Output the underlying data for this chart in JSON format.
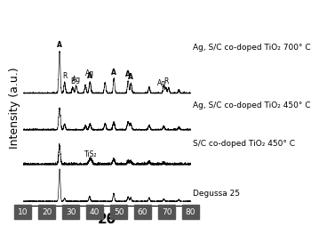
{
  "title": "",
  "xlabel": "2θ",
  "ylabel": "Intensity (a.u.)",
  "xlim": [
    10,
    80
  ],
  "x_ticks": [
    10,
    20,
    30,
    40,
    50,
    60,
    70,
    80
  ],
  "background_color": "#ffffff",
  "line_color": "#000000",
  "labels": [
    "Ag, S/C co-doped TiO₂ 700° C",
    "Ag, S/C co-doped TiO₂ 450° C",
    "S/C co-doped TiO₂ 450° C",
    "Degussa 25"
  ],
  "offsets": [
    2.8,
    1.85,
    0.95,
    0.0
  ],
  "tick_label_fontsize": 6.5,
  "axis_label_fontsize": 9,
  "annotation_fontsize": 5.5,
  "label_fontsize": 6.5,
  "noise_seed": 42
}
